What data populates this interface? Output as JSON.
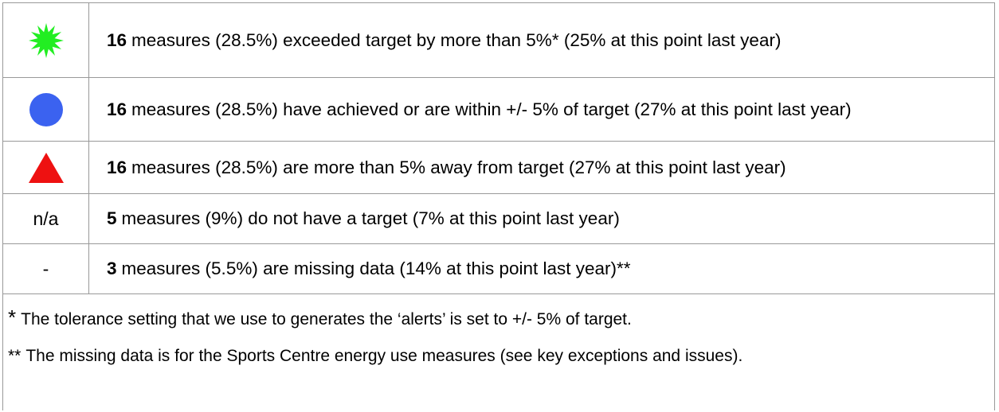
{
  "table": {
    "rows": [
      {
        "count": "16",
        "text": "measures (28.5%) exceeded target by more than 5%* (25% at this point last year)"
      },
      {
        "count": "16",
        "text": "measures (28.5%) have achieved or are within +/- 5% of target (27% at this point last year)"
      },
      {
        "count": "16",
        "text": "measures (28.5%) are more than 5% away from target (27% at this point last year)"
      },
      {
        "symbol": "n/a",
        "count": "5",
        "text": "measures (9%) do not have a target (7% at this point last year)"
      },
      {
        "symbol": "-",
        "count": "3",
        "text": "measures (5.5%) are missing data (14% at this point last year)**"
      }
    ],
    "footnotes": [
      {
        "marker": "*",
        "text": "The tolerance setting that we use to generates the ‘alerts’ is set to +/- 5% of target."
      },
      {
        "marker": "**",
        "text": "The missing data is for the Sports Centre energy use measures (see key exceptions and issues)."
      }
    ]
  }
}
